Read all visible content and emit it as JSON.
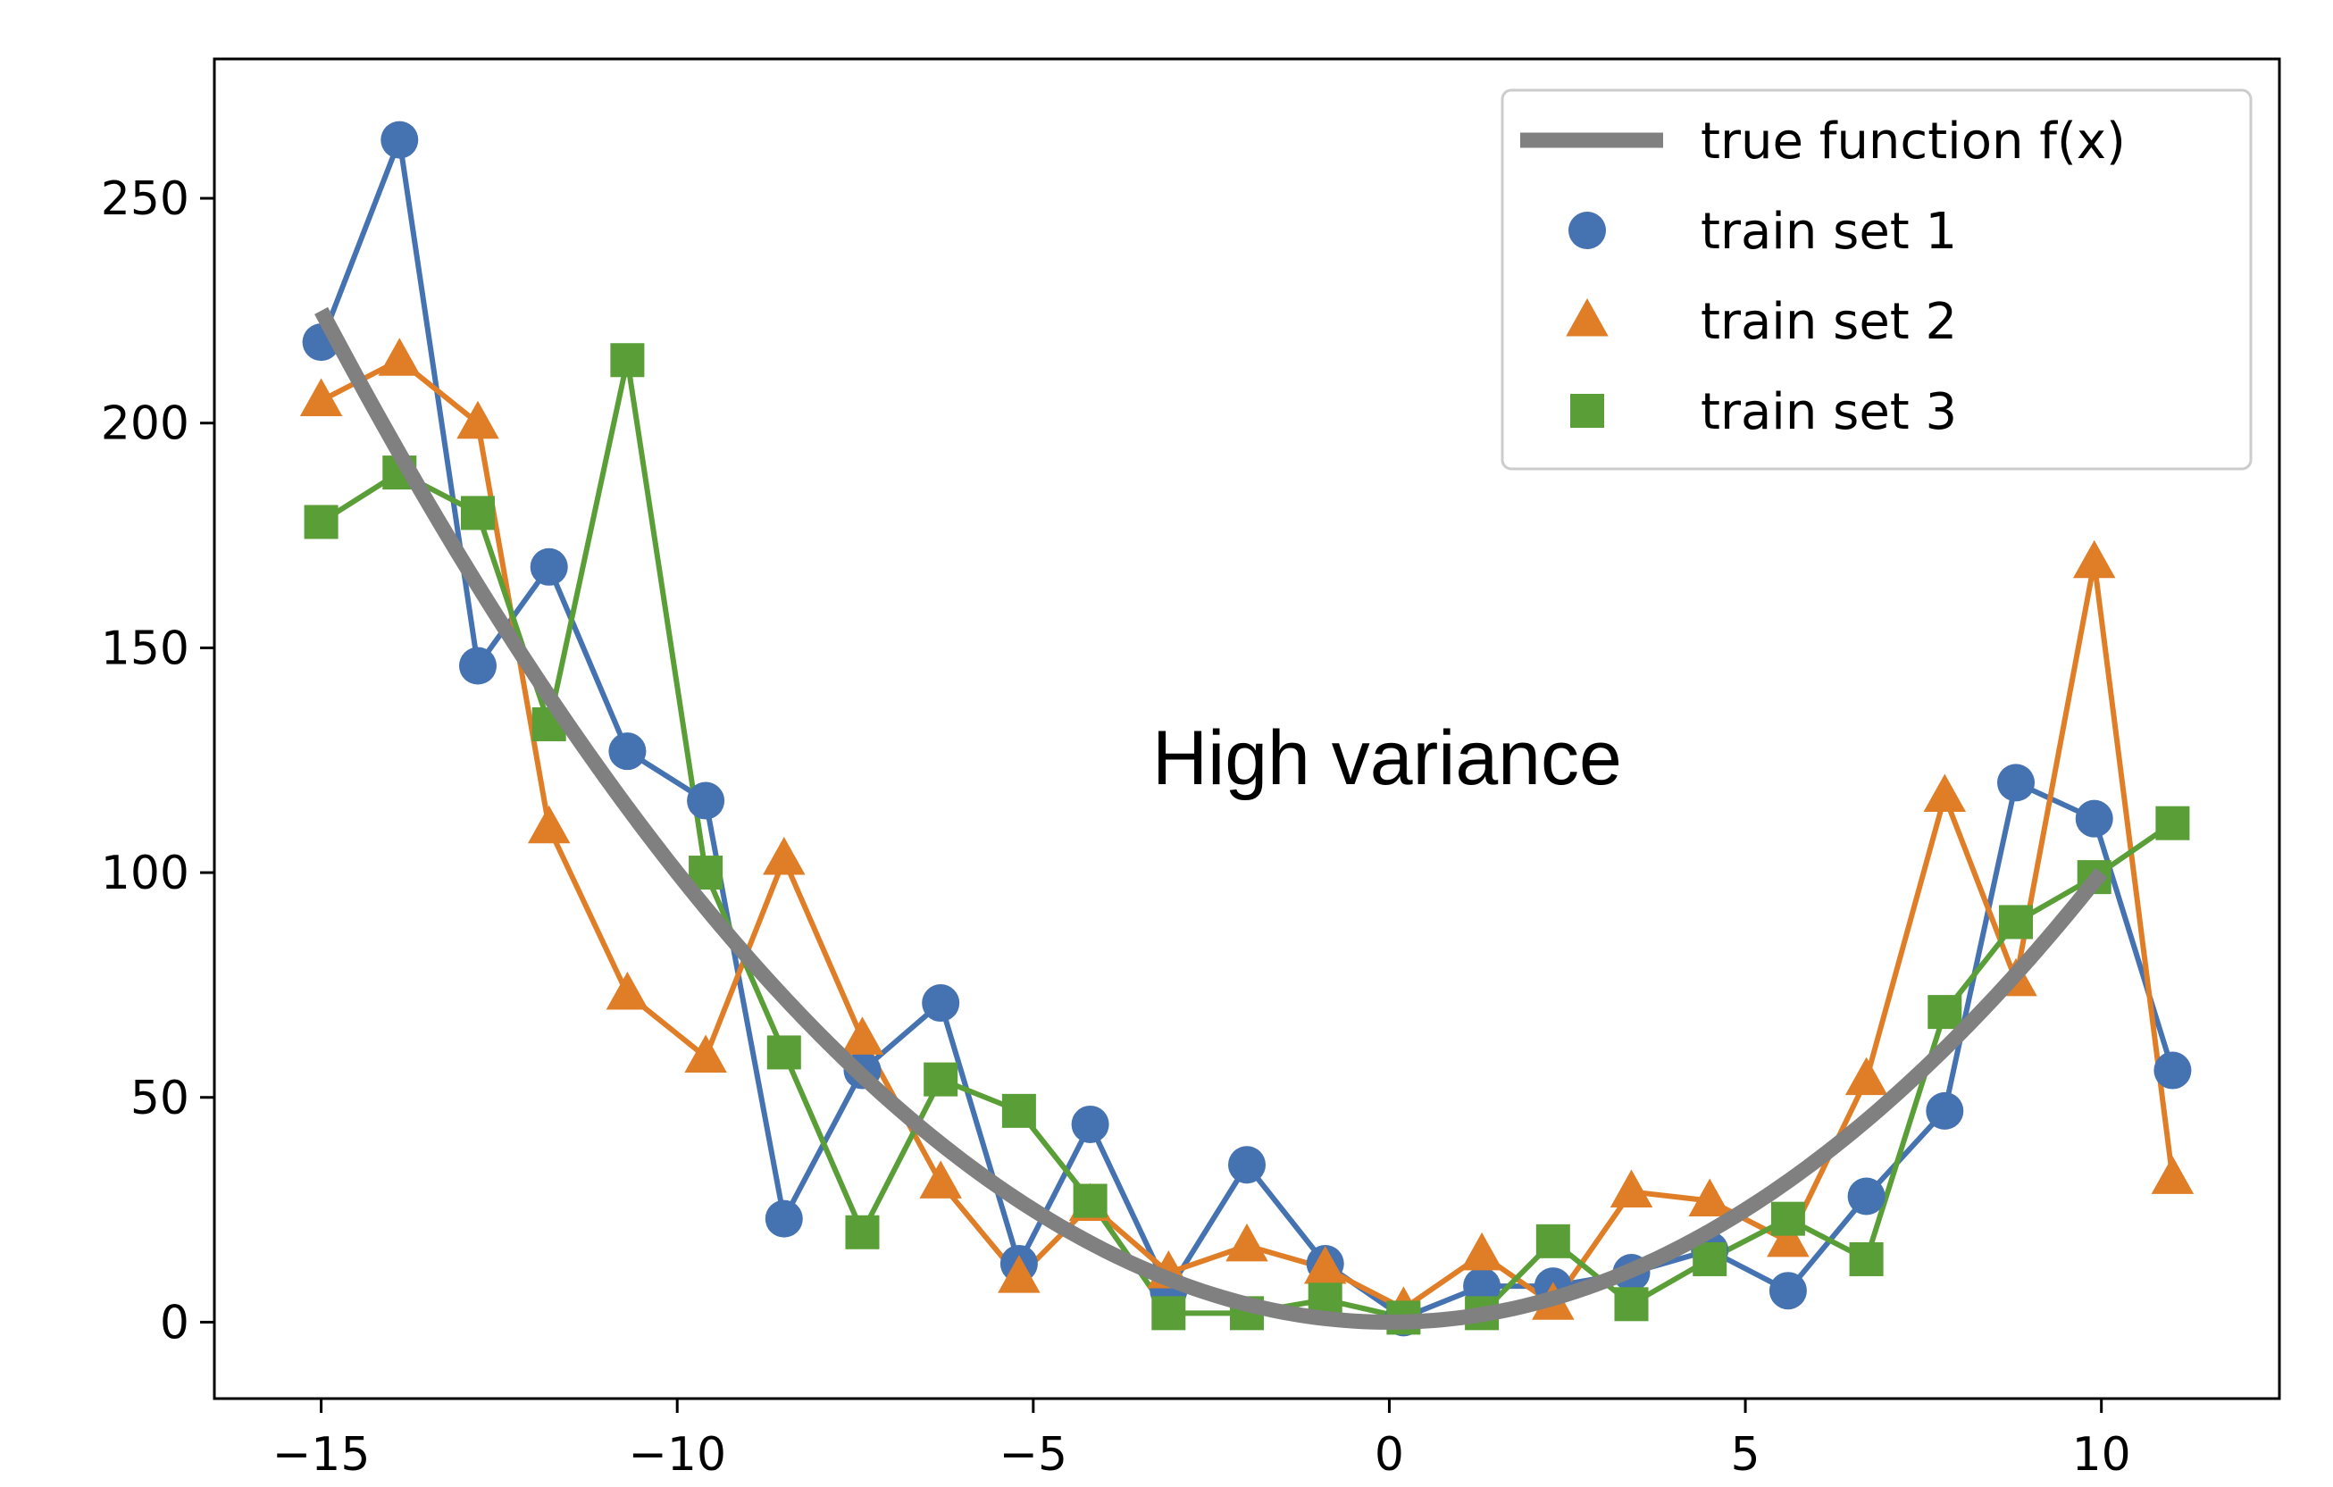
{
  "chart_data": {
    "type": "line",
    "title": "",
    "xlabel": "",
    "ylabel": "",
    "xlim": [
      -16.5,
      12.5
    ],
    "ylim": [
      -17,
      281
    ],
    "x_ticks": [
      -15,
      -10,
      -5,
      0,
      5,
      10
    ],
    "x_tick_labels": [
      "−15",
      "−10",
      "−5",
      "0",
      "5",
      "10"
    ],
    "y_ticks": [
      0,
      50,
      100,
      150,
      200,
      250
    ],
    "y_tick_labels": [
      "0",
      "50",
      "100",
      "150",
      "200",
      "250"
    ],
    "grid": false,
    "legend_position": "top-right",
    "annotation": "High variance",
    "true_function": {
      "name": "true function f(x)",
      "color": "#808080",
      "x_range": [
        -15,
        10
      ],
      "formula": "x^2"
    },
    "series": [
      {
        "name": "train set 1",
        "marker": "circle",
        "color": "#4572b0",
        "x": [
          -15,
          -13.9,
          -12.8,
          -11.8,
          -10.7,
          -9.6,
          -8.5,
          -7.4,
          -6.3,
          -5.2,
          -4.2,
          -3.1,
          -2.0,
          -0.9,
          0.2,
          1.3,
          2.3,
          3.4,
          4.5,
          5.6,
          6.7,
          7.8,
          8.8,
          9.9,
          11.0
        ],
        "values": [
          218,
          263,
          146,
          168,
          127,
          116,
          23,
          56,
          71,
          13,
          44,
          7,
          35,
          13,
          1,
          8,
          8,
          11,
          16,
          7,
          28,
          47,
          120,
          112,
          56
        ]
      },
      {
        "name": "train set 2",
        "marker": "triangle",
        "color": "#e07e27",
        "x": [
          -15,
          -13.9,
          -12.8,
          -11.8,
          -10.7,
          -9.6,
          -8.5,
          -7.4,
          -6.3,
          -5.2,
          -4.2,
          -3.1,
          -2.0,
          -0.9,
          0.2,
          1.3,
          2.3,
          3.4,
          4.5,
          5.6,
          6.7,
          7.8,
          8.8,
          9.9,
          11.0
        ],
        "values": [
          205,
          214,
          200,
          110,
          73,
          59,
          103,
          63,
          31,
          10,
          26,
          11,
          17,
          12,
          3,
          15,
          4,
          29,
          27,
          18,
          54,
          117,
          76,
          169,
          32
        ]
      },
      {
        "name": "train set 3",
        "marker": "square",
        "color": "#5a9e37",
        "x": [
          -15,
          -13.9,
          -12.8,
          -11.8,
          -10.7,
          -9.6,
          -8.5,
          -7.4,
          -6.3,
          -5.2,
          -4.2,
          -3.1,
          -2.0,
          -0.9,
          0.2,
          1.3,
          2.3,
          3.4,
          4.5,
          5.6,
          6.7,
          7.8,
          8.8,
          9.9,
          11.0
        ],
        "values": [
          178,
          189,
          180,
          133,
          214,
          100,
          60,
          20,
          54,
          47,
          27,
          2,
          2,
          5,
          1,
          2,
          18,
          4,
          14,
          23,
          14,
          69,
          89,
          99,
          111
        ]
      }
    ]
  }
}
